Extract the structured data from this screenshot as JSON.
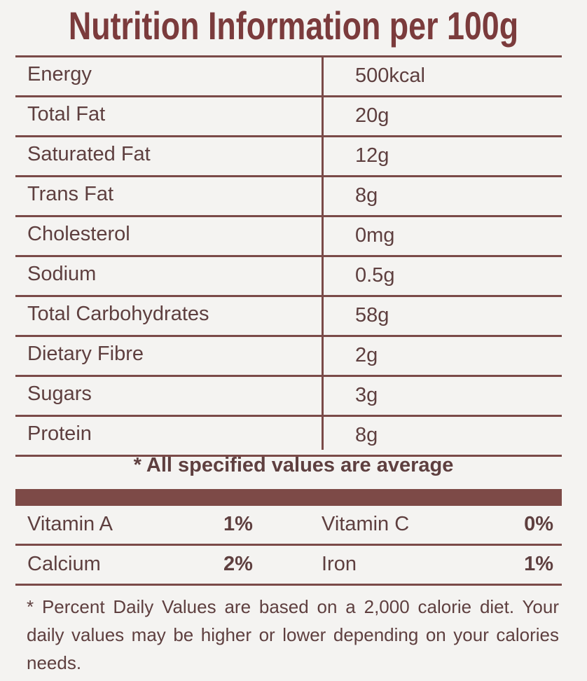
{
  "title": "Nutrition Information per 100g",
  "nutrients": [
    {
      "name": "Energy",
      "value": "500kcal"
    },
    {
      "name": "Total Fat",
      "value": "20g"
    },
    {
      "name": "Saturated Fat",
      "value": "12g"
    },
    {
      "name": "Trans Fat",
      "value": "8g"
    },
    {
      "name": "Cholesterol",
      "value": "0mg"
    },
    {
      "name": "Sodium",
      "value": "0.5g"
    },
    {
      "name": "Total Carbohydrates",
      "value": "58g"
    },
    {
      "name": "Dietary Fibre",
      "value": "2g"
    },
    {
      "name": "Sugars",
      "value": "3g"
    },
    {
      "name": "Protein",
      "value": "8g"
    }
  ],
  "average_note": "* All specified values are average",
  "vitamins": [
    [
      {
        "name": "Vitamin A",
        "value": "1%"
      },
      {
        "name": "Vitamin C",
        "value": "0%"
      }
    ],
    [
      {
        "name": "Calcium",
        "value": "2%"
      },
      {
        "name": "Iron",
        "value": "1%"
      }
    ]
  ],
  "footnote": "* Percent Daily Values are based on a 2,000 calorie diet. Your daily values may be higher or lower depending on your calories needs.",
  "colors": {
    "accent": "#7b3b3c",
    "text": "#5e3f3f",
    "background": "#f4f3f1"
  }
}
